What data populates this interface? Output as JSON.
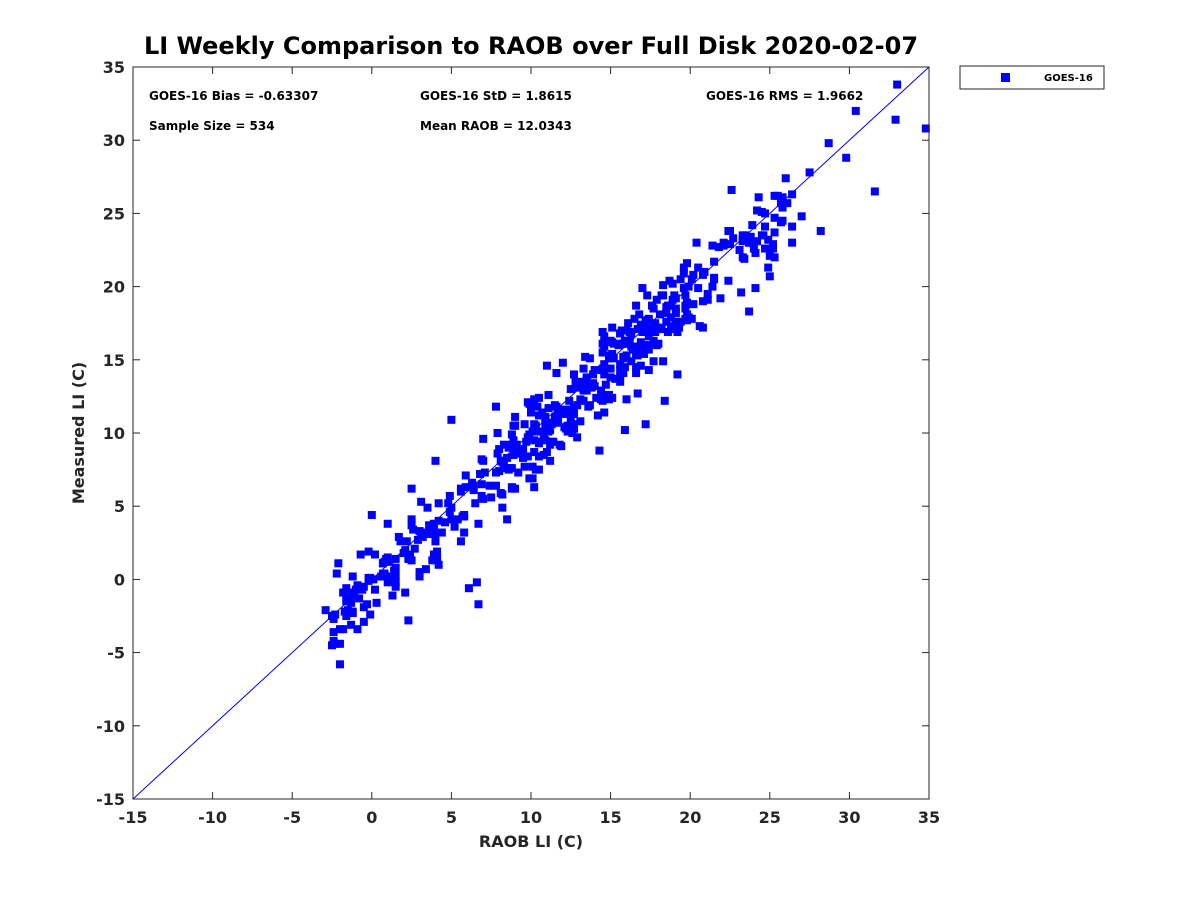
{
  "chart_data": {
    "type": "scatter",
    "title": "LI Weekly Comparison to RAOB over Full Disk 2020-02-07",
    "xlabel": "RAOB LI (C)",
    "ylabel": "Measured LI (C)",
    "xlim": [
      -15,
      35
    ],
    "ylim": [
      -15,
      35
    ],
    "xticks": [
      "-15",
      "-10",
      "-5",
      "0",
      "5",
      "10",
      "15",
      "20",
      "25",
      "30",
      "35"
    ],
    "yticks": [
      "-15",
      "-10",
      "-5",
      "0",
      "5",
      "10",
      "15",
      "20",
      "25",
      "30",
      "35"
    ],
    "legend": {
      "position": "outside-top-right",
      "entries": [
        "GOES-16"
      ]
    },
    "reference_line": {
      "label": "1:1",
      "from": [
        -15,
        -15
      ],
      "to": [
        35,
        35
      ]
    },
    "stats": {
      "bias": "GOES-16 Bias = -0.63307",
      "std": "GOES-16 StD = 1.8615",
      "rms": "GOES-16 RMS = 1.9662",
      "sample_size": "Sample Size = 534",
      "mean_raob": "Mean RAOB = 12.0343"
    },
    "series": [
      {
        "name": "GOES-16",
        "color": "#0000ff",
        "marker": "square",
        "count": 534,
        "representative_points": [
          [
            -2.9,
            -2.1
          ],
          [
            -2.4,
            -2.7
          ],
          [
            -2.1,
            1.1
          ],
          [
            -1.6,
            -2.5
          ],
          [
            -1.3,
            -0.9
          ],
          [
            -0.9,
            -3.4
          ],
          [
            -0.7,
            1.7
          ],
          [
            -0.2,
            -0.1
          ],
          [
            0.0,
            4.4
          ],
          [
            0.3,
            -1.6
          ],
          [
            0.7,
            0.2
          ],
          [
            1.0,
            3.8
          ],
          [
            1.3,
            -1.1
          ],
          [
            2.3,
            -2.8
          ],
          [
            2.5,
            6.2
          ],
          [
            3.5,
            4.9
          ],
          [
            4.0,
            8.1
          ],
          [
            5.0,
            10.9
          ],
          [
            5.9,
            7.1
          ],
          [
            6.1,
            -0.6
          ],
          [
            6.6,
            -0.2
          ],
          [
            6.7,
            -1.7
          ],
          [
            7.0,
            9.6
          ],
          [
            7.8,
            11.8
          ],
          [
            8.5,
            4.1
          ],
          [
            9.0,
            6.2
          ],
          [
            10.0,
            11.9
          ],
          [
            10.3,
            7.5
          ],
          [
            11.0,
            14.6
          ],
          [
            12.0,
            14.8
          ],
          [
            14.3,
            8.8
          ],
          [
            15.1,
            12.4
          ],
          [
            15.9,
            10.2
          ],
          [
            17.2,
            10.6
          ],
          [
            17.0,
            19.9
          ],
          [
            18.4,
            12.2
          ],
          [
            19.2,
            14.0
          ],
          [
            19.6,
            21.3
          ],
          [
            20.8,
            17.2
          ],
          [
            21.5,
            20.6
          ],
          [
            22.6,
            26.6
          ],
          [
            23.7,
            18.3
          ],
          [
            24.3,
            26.1
          ],
          [
            25.3,
            22.0
          ],
          [
            26.0,
            27.4
          ],
          [
            27.0,
            24.8
          ],
          [
            27.5,
            27.8
          ],
          [
            28.2,
            23.8
          ],
          [
            28.7,
            29.8
          ],
          [
            29.8,
            28.8
          ],
          [
            30.4,
            32.0
          ],
          [
            31.6,
            26.5
          ],
          [
            32.9,
            31.4
          ],
          [
            33.0,
            33.8
          ],
          [
            34.8,
            30.8
          ]
        ]
      }
    ]
  }
}
